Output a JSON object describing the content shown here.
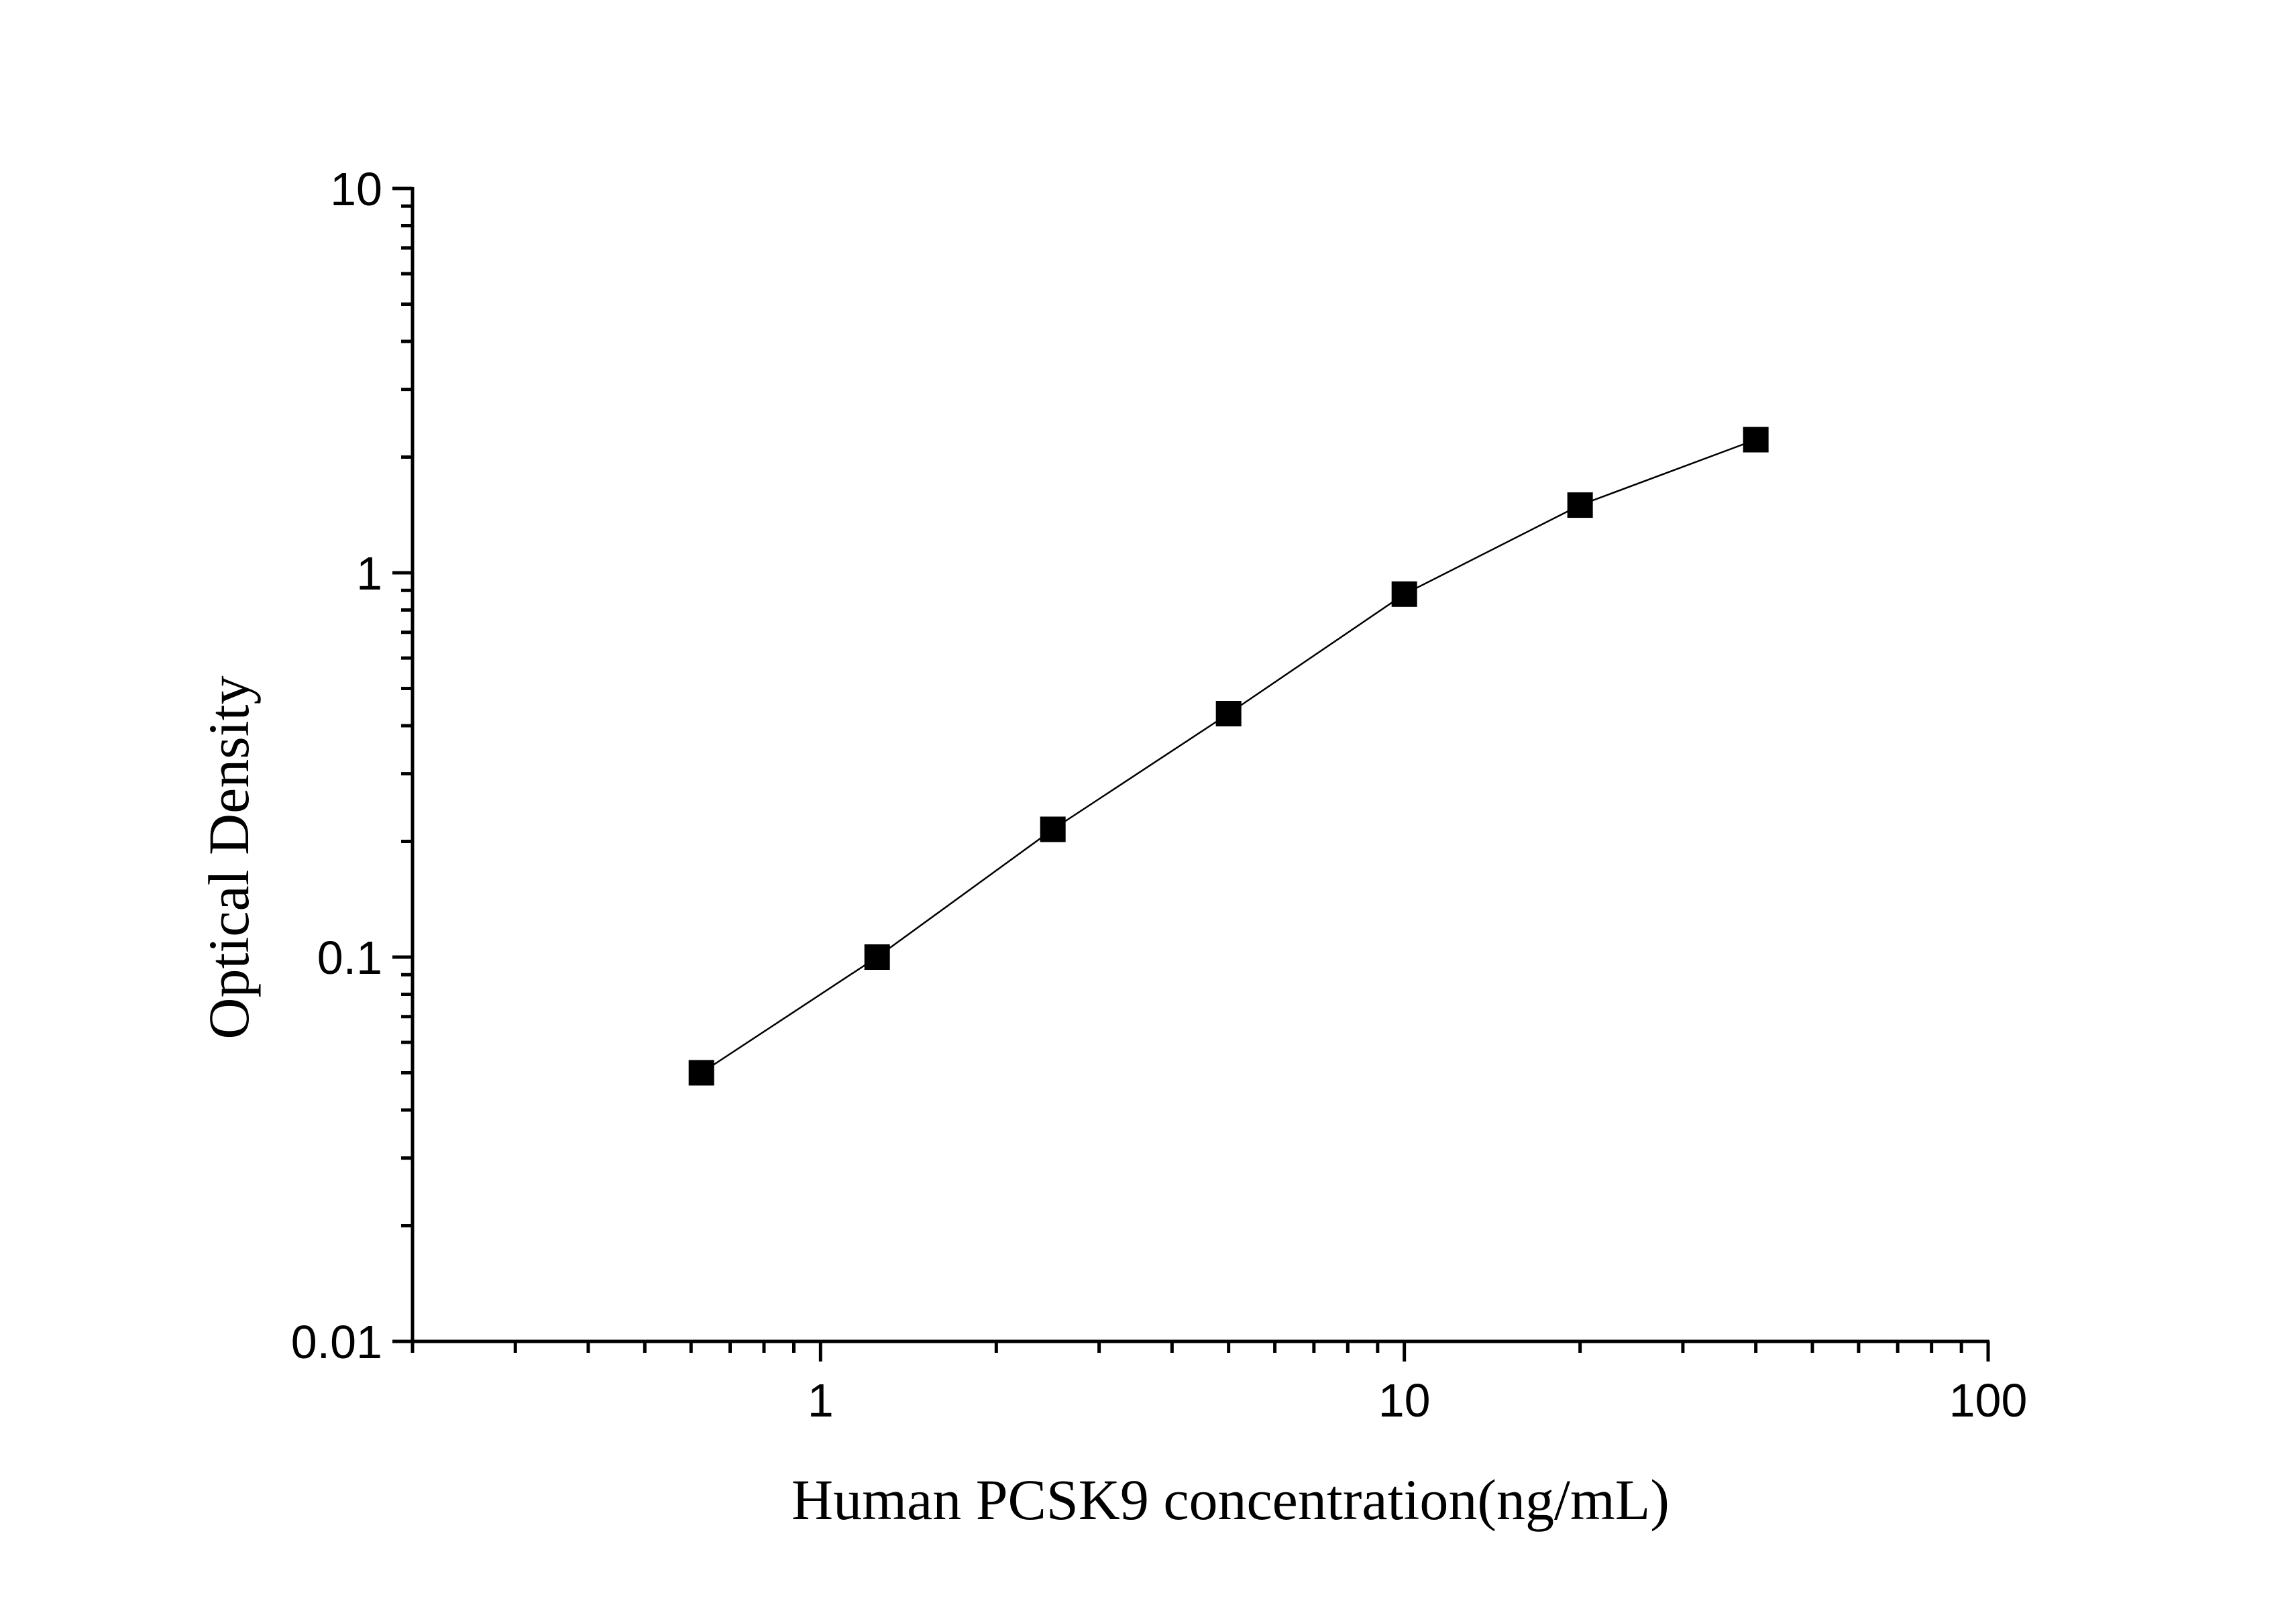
{
  "chart_data": {
    "type": "scatter",
    "title": "",
    "xlabel": "Human PCSK9 concentration(ng/mL)",
    "ylabel": "Optical Density",
    "x_scale": "log",
    "y_scale": "log",
    "xlim": [
      0.2,
      100
    ],
    "ylim": [
      0.01,
      10
    ],
    "x_ticks": [
      {
        "value": 1,
        "label": "1"
      },
      {
        "value": 10,
        "label": "10"
      },
      {
        "value": 100,
        "label": "100"
      }
    ],
    "y_ticks": [
      {
        "value": 0.01,
        "label": "0.01"
      },
      {
        "value": 0.1,
        "label": "0.1"
      },
      {
        "value": 1,
        "label": "1"
      },
      {
        "value": 10,
        "label": "10"
      }
    ],
    "grid": false,
    "legend": "none",
    "series": [
      {
        "marker": "square",
        "connected": true,
        "color": "#000000",
        "points": [
          {
            "x": 0.625,
            "y": 0.05
          },
          {
            "x": 1.25,
            "y": 0.1
          },
          {
            "x": 2.5,
            "y": 0.215
          },
          {
            "x": 5,
            "y": 0.43
          },
          {
            "x": 10,
            "y": 0.88
          },
          {
            "x": 20,
            "y": 1.5
          },
          {
            "x": 40,
            "y": 2.22
          }
        ]
      }
    ]
  }
}
